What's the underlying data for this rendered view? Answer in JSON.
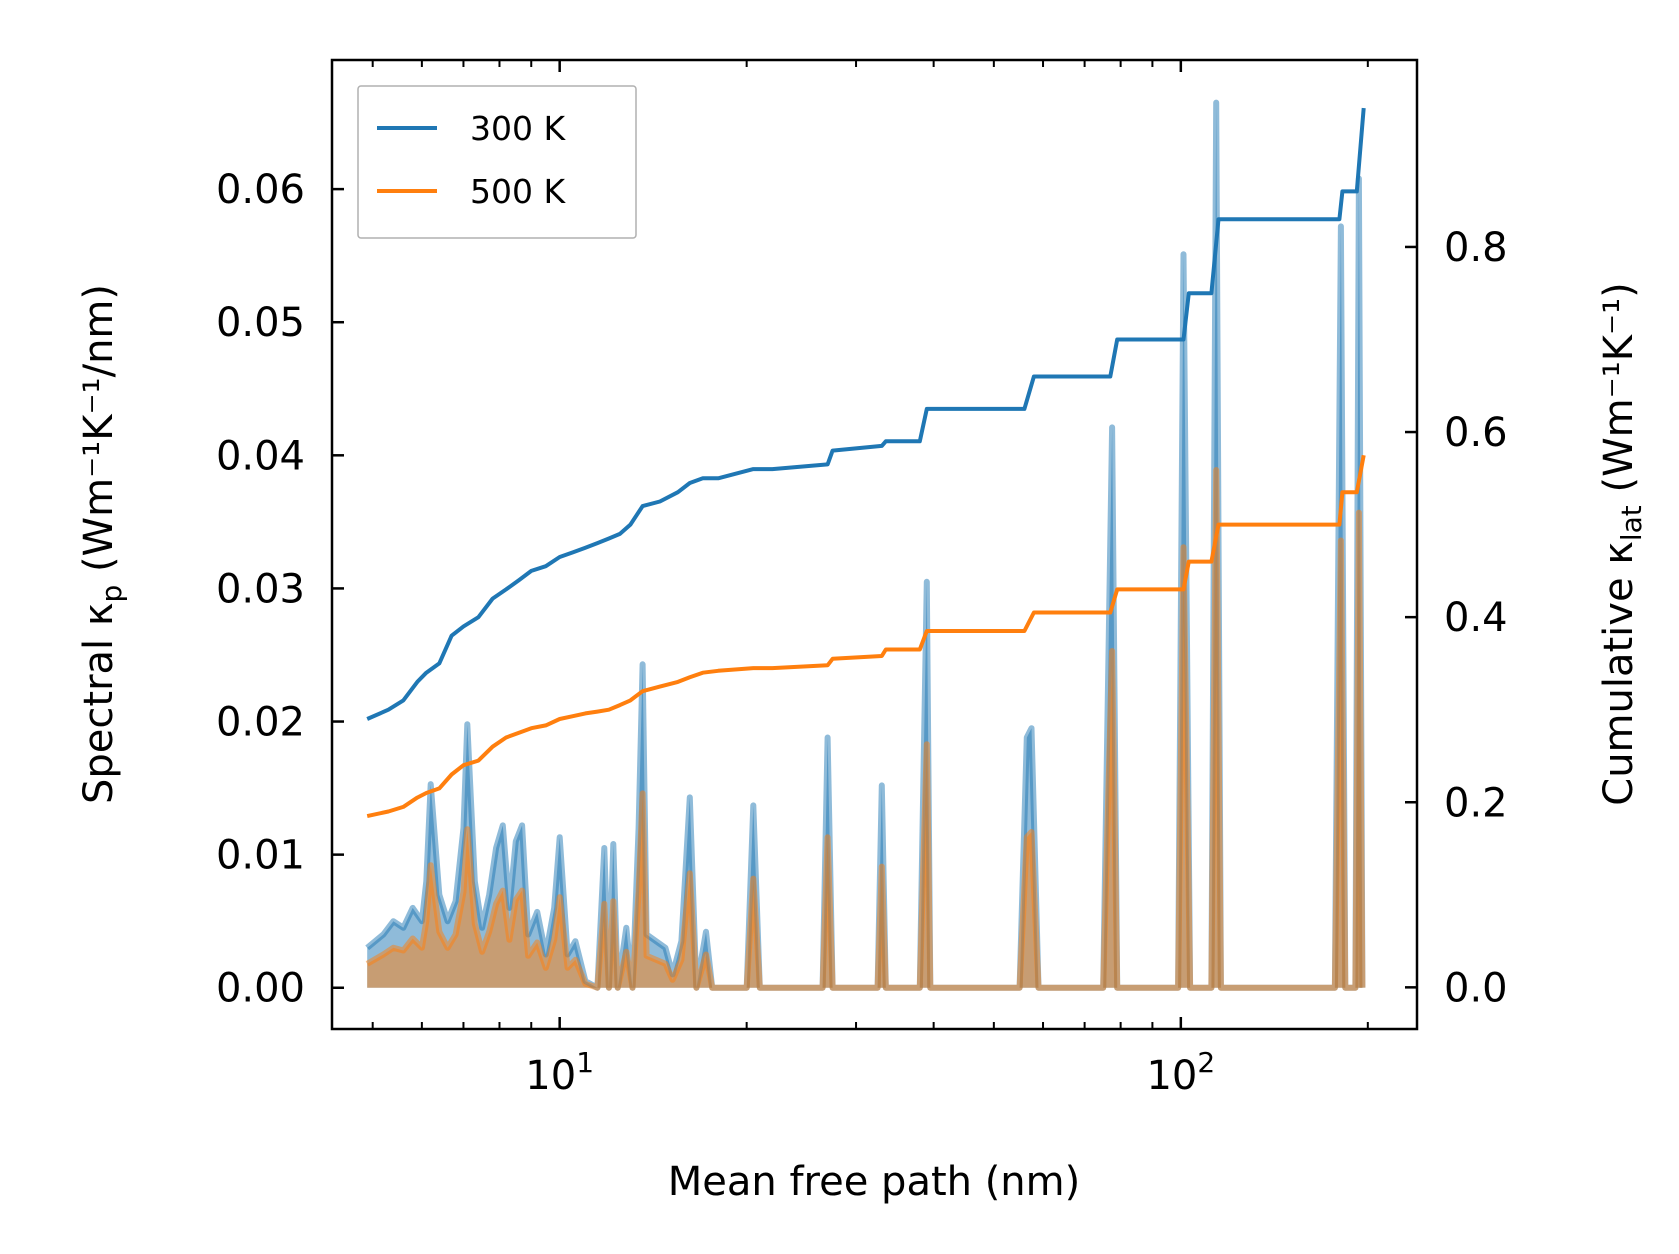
{
  "chart_data": {
    "type": "line",
    "xlabel": "Mean free path (nm)",
    "xscale": "log",
    "xlim": [
      4.3,
      240
    ],
    "x_major_ticks": [
      {
        "value": 10,
        "base": "10",
        "exp": "1"
      },
      {
        "value": 100,
        "base": "10",
        "exp": "2"
      }
    ],
    "x_minor_ticks": [
      5,
      6,
      7,
      8,
      9,
      20,
      30,
      40,
      50,
      60,
      70,
      80,
      90,
      200
    ],
    "left_axis": {
      "label_prefix": "Spectral κ",
      "label_sub": "p",
      "label_unit": " (Wm⁻¹K⁻¹/nm)",
      "ylim": [
        -0.0031,
        0.0697
      ],
      "ticks": [
        0.0,
        0.01,
        0.02,
        0.03,
        0.04,
        0.05,
        0.06
      ],
      "tick_labels": [
        "0.00",
        "0.01",
        "0.02",
        "0.03",
        "0.04",
        "0.05",
        "0.06"
      ]
    },
    "right_axis": {
      "label_prefix": "Cumulative κ",
      "label_sub": "lat",
      "label_unit": " (Wm⁻¹K⁻¹)",
      "ylim": [
        -0.045,
        1.002
      ],
      "ticks": [
        0.0,
        0.2,
        0.4,
        0.6,
        0.8
      ],
      "tick_labels": [
        "0.0",
        "0.2",
        "0.4",
        "0.6",
        "0.8"
      ]
    },
    "legend": {
      "location": "top-left",
      "entries": [
        "300 K",
        "500 K"
      ]
    },
    "series": [
      {
        "name": "300 K",
        "color": "#1f77b4",
        "cumulative": [
          [
            4.9,
            0.29
          ],
          [
            5.3,
            0.3
          ],
          [
            5.6,
            0.31
          ],
          [
            5.9,
            0.33
          ],
          [
            6.1,
            0.34
          ],
          [
            6.4,
            0.35
          ],
          [
            6.7,
            0.38
          ],
          [
            7.0,
            0.39
          ],
          [
            7.4,
            0.4
          ],
          [
            7.8,
            0.42
          ],
          [
            8.2,
            0.43
          ],
          [
            8.6,
            0.44
          ],
          [
            9.0,
            0.45
          ],
          [
            9.5,
            0.455
          ],
          [
            10.0,
            0.465
          ],
          [
            10.5,
            0.47
          ],
          [
            11.0,
            0.475
          ],
          [
            11.5,
            0.48
          ],
          [
            12.0,
            0.485
          ],
          [
            12.5,
            0.49
          ],
          [
            13.0,
            0.5
          ],
          [
            13.6,
            0.52
          ],
          [
            14.5,
            0.525
          ],
          [
            15.5,
            0.535
          ],
          [
            16.2,
            0.545
          ],
          [
            17.0,
            0.55
          ],
          [
            18.0,
            0.55
          ],
          [
            20.5,
            0.56
          ],
          [
            22.0,
            0.56
          ],
          [
            27.0,
            0.565
          ],
          [
            27.5,
            0.58
          ],
          [
            33.0,
            0.585
          ],
          [
            33.5,
            0.59
          ],
          [
            38.0,
            0.59
          ],
          [
            39.0,
            0.625
          ],
          [
            56.0,
            0.625
          ],
          [
            58.0,
            0.66
          ],
          [
            77.0,
            0.66
          ],
          [
            79.0,
            0.7
          ],
          [
            101.0,
            0.7
          ],
          [
            103.0,
            0.75
          ],
          [
            112.0,
            0.75
          ],
          [
            115.0,
            0.83
          ],
          [
            180.0,
            0.83
          ],
          [
            182.0,
            0.86
          ],
          [
            192.0,
            0.86
          ],
          [
            197.0,
            0.95
          ]
        ],
        "spectral": [
          [
            4.9,
            0.003
          ],
          [
            5.2,
            0.004
          ],
          [
            5.4,
            0.005
          ],
          [
            5.6,
            0.0045
          ],
          [
            5.8,
            0.006
          ],
          [
            6.0,
            0.005
          ],
          [
            6.1,
            0.008
          ],
          [
            6.2,
            0.0153
          ],
          [
            6.4,
            0.007
          ],
          [
            6.6,
            0.005
          ],
          [
            6.8,
            0.0065
          ],
          [
            7.0,
            0.012
          ],
          [
            7.1,
            0.0198
          ],
          [
            7.3,
            0.008
          ],
          [
            7.5,
            0.0045
          ],
          [
            7.7,
            0.007
          ],
          [
            7.9,
            0.0105
          ],
          [
            8.1,
            0.0122
          ],
          [
            8.3,
            0.006
          ],
          [
            8.5,
            0.011
          ],
          [
            8.7,
            0.0122
          ],
          [
            8.9,
            0.004
          ],
          [
            9.2,
            0.0057
          ],
          [
            9.5,
            0.0025
          ],
          [
            9.8,
            0.006
          ],
          [
            10.0,
            0.0113
          ],
          [
            10.3,
            0.0025
          ],
          [
            10.6,
            0.0035
          ],
          [
            11.0,
            0.0005
          ],
          [
            11.5,
            0.0
          ],
          [
            11.8,
            0.0105
          ],
          [
            12.0,
            0.0
          ],
          [
            12.2,
            0.0108
          ],
          [
            12.4,
            0.0
          ],
          [
            12.8,
            0.0045
          ],
          [
            13.1,
            0.0
          ],
          [
            13.4,
            0.012
          ],
          [
            13.6,
            0.0243
          ],
          [
            13.8,
            0.004
          ],
          [
            14.8,
            0.003
          ],
          [
            15.2,
            0.001
          ],
          [
            15.7,
            0.0035
          ],
          [
            16.2,
            0.0143
          ],
          [
            16.6,
            0.0
          ],
          [
            17.2,
            0.0042
          ],
          [
            17.6,
            0.0
          ],
          [
            20.0,
            0.0
          ],
          [
            20.5,
            0.0137
          ],
          [
            21.0,
            0.0
          ],
          [
            26.5,
            0.0
          ],
          [
            27.0,
            0.0188
          ],
          [
            27.5,
            0.0
          ],
          [
            32.5,
            0.0
          ],
          [
            33.0,
            0.0152
          ],
          [
            33.5,
            0.0
          ],
          [
            38.0,
            0.0
          ],
          [
            39.0,
            0.0305
          ],
          [
            39.5,
            0.0
          ],
          [
            55.0,
            0.0
          ],
          [
            56.5,
            0.0188
          ],
          [
            57.5,
            0.0195
          ],
          [
            59.0,
            0.0
          ],
          [
            75.0,
            0.0
          ],
          [
            77.5,
            0.0421
          ],
          [
            79.0,
            0.0
          ],
          [
            99.0,
            0.0
          ],
          [
            101.0,
            0.0551
          ],
          [
            103.5,
            0.0
          ],
          [
            112.0,
            0.0
          ],
          [
            114.0,
            0.0665
          ],
          [
            116.0,
            0.0
          ],
          [
            177.0,
            0.0
          ],
          [
            181.0,
            0.0572
          ],
          [
            184.0,
            0.0
          ],
          [
            191.0,
            0.0
          ],
          [
            193.5,
            0.0608
          ],
          [
            196.0,
            0.0
          ]
        ]
      },
      {
        "name": "500 K",
        "color": "#ff7f0e",
        "cumulative": [
          [
            4.9,
            0.185
          ],
          [
            5.3,
            0.19
          ],
          [
            5.6,
            0.195
          ],
          [
            5.9,
            0.205
          ],
          [
            6.1,
            0.21
          ],
          [
            6.4,
            0.215
          ],
          [
            6.7,
            0.23
          ],
          [
            7.0,
            0.24
          ],
          [
            7.4,
            0.245
          ],
          [
            7.8,
            0.26
          ],
          [
            8.2,
            0.27
          ],
          [
            8.6,
            0.275
          ],
          [
            9.0,
            0.28
          ],
          [
            9.5,
            0.283
          ],
          [
            10.0,
            0.29
          ],
          [
            10.5,
            0.293
          ],
          [
            11.0,
            0.296
          ],
          [
            11.5,
            0.298
          ],
          [
            12.0,
            0.3
          ],
          [
            12.5,
            0.305
          ],
          [
            13.0,
            0.31
          ],
          [
            13.6,
            0.32
          ],
          [
            14.5,
            0.325
          ],
          [
            15.5,
            0.33
          ],
          [
            16.2,
            0.335
          ],
          [
            17.0,
            0.34
          ],
          [
            18.0,
            0.342
          ],
          [
            20.5,
            0.345
          ],
          [
            22.0,
            0.345
          ],
          [
            27.0,
            0.348
          ],
          [
            27.5,
            0.355
          ],
          [
            33.0,
            0.358
          ],
          [
            33.5,
            0.365
          ],
          [
            38.0,
            0.365
          ],
          [
            39.0,
            0.385
          ],
          [
            56.0,
            0.385
          ],
          [
            58.0,
            0.405
          ],
          [
            77.0,
            0.405
          ],
          [
            79.0,
            0.43
          ],
          [
            101.0,
            0.43
          ],
          [
            103.0,
            0.46
          ],
          [
            112.0,
            0.46
          ],
          [
            115.0,
            0.5
          ],
          [
            180.0,
            0.5
          ],
          [
            182.0,
            0.535
          ],
          [
            192.0,
            0.535
          ],
          [
            197.0,
            0.575
          ]
        ],
        "spectral": [
          [
            4.9,
            0.0018
          ],
          [
            5.2,
            0.0025
          ],
          [
            5.4,
            0.003
          ],
          [
            5.6,
            0.0028
          ],
          [
            5.8,
            0.0037
          ],
          [
            6.0,
            0.003
          ],
          [
            6.1,
            0.005
          ],
          [
            6.2,
            0.0092
          ],
          [
            6.4,
            0.0042
          ],
          [
            6.6,
            0.003
          ],
          [
            6.8,
            0.004
          ],
          [
            7.0,
            0.0072
          ],
          [
            7.1,
            0.0119
          ],
          [
            7.3,
            0.0048
          ],
          [
            7.5,
            0.0027
          ],
          [
            7.7,
            0.0042
          ],
          [
            7.9,
            0.0063
          ],
          [
            8.1,
            0.0073
          ],
          [
            8.3,
            0.0036
          ],
          [
            8.5,
            0.0066
          ],
          [
            8.7,
            0.0073
          ],
          [
            8.9,
            0.0024
          ],
          [
            9.2,
            0.0034
          ],
          [
            9.5,
            0.0015
          ],
          [
            9.8,
            0.0036
          ],
          [
            10.0,
            0.0068
          ],
          [
            10.3,
            0.0015
          ],
          [
            10.6,
            0.0021
          ],
          [
            11.0,
            0.0003
          ],
          [
            11.5,
            0.0
          ],
          [
            11.8,
            0.0063
          ],
          [
            12.0,
            0.0
          ],
          [
            12.2,
            0.0065
          ],
          [
            12.4,
            0.0
          ],
          [
            12.8,
            0.0027
          ],
          [
            13.1,
            0.0
          ],
          [
            13.4,
            0.0072
          ],
          [
            13.6,
            0.0146
          ],
          [
            13.8,
            0.0024
          ],
          [
            14.8,
            0.0018
          ],
          [
            15.2,
            0.0006
          ],
          [
            15.7,
            0.0021
          ],
          [
            16.2,
            0.0086
          ],
          [
            16.6,
            0.0
          ],
          [
            17.2,
            0.0025
          ],
          [
            17.6,
            0.0
          ],
          [
            20.0,
            0.0
          ],
          [
            20.5,
            0.0082
          ],
          [
            21.0,
            0.0
          ],
          [
            26.5,
            0.0
          ],
          [
            27.0,
            0.0113
          ],
          [
            27.5,
            0.0
          ],
          [
            32.5,
            0.0
          ],
          [
            33.0,
            0.0091
          ],
          [
            33.5,
            0.0
          ],
          [
            38.0,
            0.0
          ],
          [
            39.0,
            0.0183
          ],
          [
            39.5,
            0.0
          ],
          [
            55.0,
            0.0
          ],
          [
            56.5,
            0.0113
          ],
          [
            57.5,
            0.0117
          ],
          [
            59.0,
            0.0
          ],
          [
            75.0,
            0.0
          ],
          [
            77.5,
            0.0253
          ],
          [
            79.0,
            0.0
          ],
          [
            99.0,
            0.0
          ],
          [
            101.0,
            0.0331
          ],
          [
            103.5,
            0.0
          ],
          [
            112.0,
            0.0
          ],
          [
            114.0,
            0.0389
          ],
          [
            116.0,
            0.0
          ],
          [
            177.0,
            0.0
          ],
          [
            181.0,
            0.0336
          ],
          [
            184.0,
            0.0
          ],
          [
            191.0,
            0.0
          ],
          [
            193.5,
            0.0357
          ],
          [
            196.0,
            0.0
          ]
        ]
      }
    ]
  }
}
